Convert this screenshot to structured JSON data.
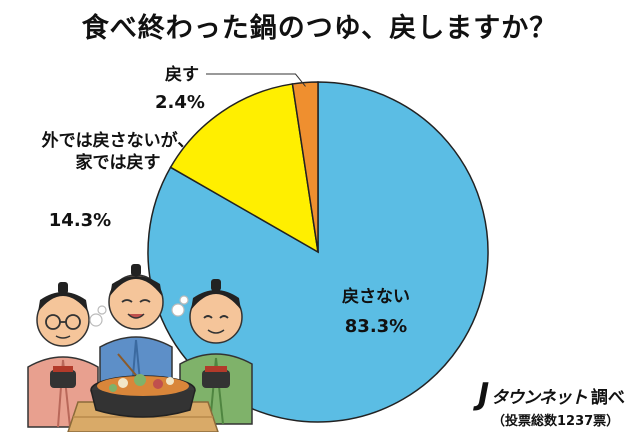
{
  "title": "食べ終わった鍋のつゆ、戻しますか？",
  "chart_data": {
    "type": "pie",
    "title": "食べ終わった鍋のつゆ、戻しますか？",
    "start": "12 o'clock",
    "direction": "clockwise",
    "slices": [
      {
        "label": "戻さない",
        "value": 83.3,
        "value_text": "83.3%",
        "color": "#5bbde4"
      },
      {
        "label": "外では戻さないが、家では戻す",
        "label_lines": [
          "外では戻さないが、",
          "家では戻す"
        ],
        "value": 14.3,
        "value_text": "14.3%",
        "color": "#ffef00"
      },
      {
        "label": "戻す",
        "value": 2.4,
        "value_text": "2.4%",
        "color": "#ef8f2f"
      }
    ]
  },
  "source": {
    "brand_mark": "J",
    "brand_name": "タウンネット",
    "brand_suffix": "調べ",
    "votes": "（投票総数1237票）"
  },
  "colors": {
    "slice_outline": "#222222",
    "kimono_pink": "#e8a08f",
    "kimono_blue": "#5d8fc8",
    "kimono_green": "#7fb26a",
    "skin": "#f5c59a",
    "hair": "#222222",
    "table_wood": "#d9aa68",
    "pot": "#3a3a3a"
  }
}
